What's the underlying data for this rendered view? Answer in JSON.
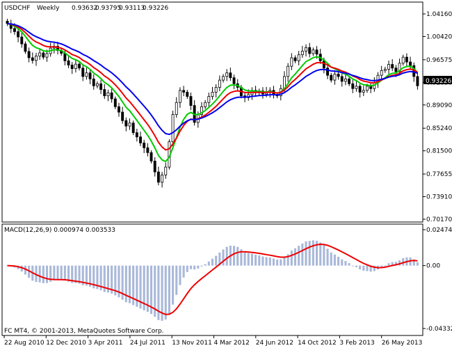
{
  "chart_data": {
    "type": "candlestick",
    "symbol": "USDCHF",
    "timeframe": "Weekly",
    "quote": {
      "open": "0.93632",
      "high": "0.93795",
      "low": "0.93113",
      "close": "0.93226"
    },
    "price_axis": {
      "ticks": [
        "1.04160",
        "1.00420",
        "0.96575",
        "0.92830",
        "0.89090",
        "0.85240",
        "0.81500",
        "0.77655",
        "0.73910",
        "0.70170"
      ],
      "current": "0.93226"
    },
    "date_labels": [
      "22 Aug 2010",
      "12 Dec 2010",
      "3 Apr 2011",
      "24 Jul 2011",
      "13 Nov 2011",
      "4 Mar 2012",
      "24 Jun 2012",
      "14 Oct 2012",
      "3 Feb 2013",
      "26 May 2013"
    ],
    "price_range": [
      0.7017,
      1.0416
    ],
    "closes": [
      1.0256,
      1.0175,
      1.0123,
      1.0035,
      0.992,
      0.9795,
      0.969,
      0.9645,
      0.972,
      0.977,
      0.97,
      0.976,
      0.985,
      0.988,
      0.981,
      0.9765,
      0.964,
      0.957,
      0.951,
      0.9585,
      0.952,
      0.938,
      0.944,
      0.934,
      0.9225,
      0.926,
      0.9165,
      0.906,
      0.911,
      0.901,
      0.888,
      0.879,
      0.865,
      0.856,
      0.861,
      0.845,
      0.838,
      0.828,
      0.82,
      0.812,
      0.798,
      0.78,
      0.763,
      0.775,
      0.788,
      0.83,
      0.875,
      0.895,
      0.915,
      0.912,
      0.905,
      0.89,
      0.862,
      0.875,
      0.888,
      0.895,
      0.905,
      0.912,
      0.92,
      0.932,
      0.938,
      0.944,
      0.936,
      0.926,
      0.92,
      0.906,
      0.903,
      0.908,
      0.915,
      0.911,
      0.914,
      0.909,
      0.912,
      0.915,
      0.908,
      0.906,
      0.918,
      0.938,
      0.955,
      0.969,
      0.964,
      0.974,
      0.98,
      0.986,
      0.976,
      0.982,
      0.975,
      0.964,
      0.952,
      0.94,
      0.932,
      0.942,
      0.938,
      0.93,
      0.934,
      0.926,
      0.918,
      0.922,
      0.912,
      0.915,
      0.922,
      0.918,
      0.928,
      0.94,
      0.948,
      0.95,
      0.958,
      0.952,
      0.946,
      0.96,
      0.97,
      0.962,
      0.956,
      0.938,
      0.9226
    ],
    "moving_averages": [
      {
        "color": "#00cc00",
        "period": 8
      },
      {
        "color": "#ee0000",
        "period": 13
      },
      {
        "color": "#0000ee",
        "period": 21
      }
    ],
    "macd": {
      "label": "MACD(12,26,9) 0.000974 0.003533",
      "ticks": [
        "0.024749",
        "0.00",
        "-0.04332"
      ],
      "range": [
        -0.04332,
        0.024749
      ],
      "histogram_color": "#a9b8d9",
      "signal_color": "#ee0000"
    },
    "copyright": "FC MT4, © 2001-2013, MetaQuotes Software Corp."
  }
}
